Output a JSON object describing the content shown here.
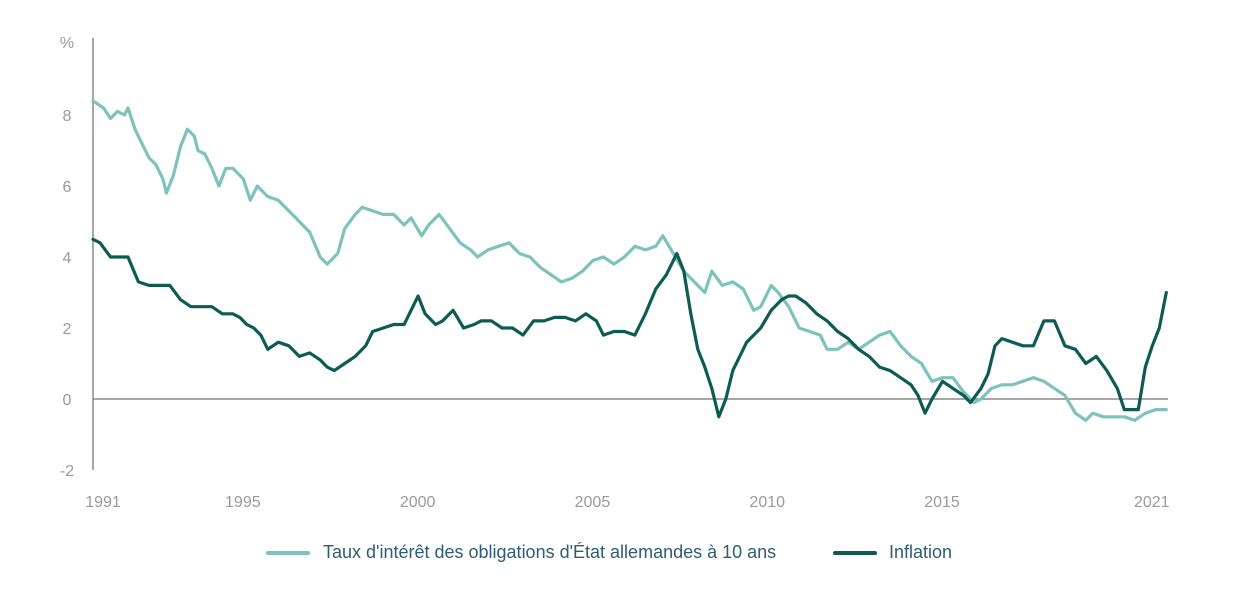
{
  "chart_data": {
    "type": "line",
    "y_unit": "%",
    "ylim": [
      -2,
      10
    ],
    "xlim": [
      1991,
      2021.75
    ],
    "y_ticks": [
      -2,
      0,
      2,
      4,
      6,
      8
    ],
    "x_ticks": [
      1991,
      1995,
      2000,
      2005,
      2010,
      2015,
      2021
    ],
    "grid": false,
    "legend_position": "bottom",
    "series": [
      {
        "name": "Taux d'intérêt des obligations d'État allemandes à 10 ans",
        "color": "#7dc3b9",
        "x": [
          1991,
          1991.3,
          1991.5,
          1991.7,
          1991.9,
          1992.0,
          1992.2,
          1992.4,
          1992.6,
          1992.8,
          1993.0,
          1993.1,
          1993.3,
          1993.5,
          1993.7,
          1993.9,
          1994.0,
          1994.2,
          1994.4,
          1994.6,
          1994.8,
          1995.0,
          1995.3,
          1995.5,
          1995.7,
          1996.0,
          1996.3,
          1996.6,
          1996.9,
          1997.2,
          1997.5,
          1997.7,
          1998.0,
          1998.2,
          1998.5,
          1998.7,
          1999.0,
          1999.3,
          1999.6,
          1999.9,
          2000.1,
          2000.4,
          2000.6,
          2000.9,
          2001.2,
          2001.5,
          2001.8,
          2002.0,
          2002.3,
          2002.6,
          2002.9,
          2003.2,
          2003.5,
          2003.8,
          2004.1,
          2004.4,
          2004.7,
          2005.0,
          2005.3,
          2005.6,
          2005.9,
          2006.2,
          2006.5,
          2006.8,
          2007.1,
          2007.3,
          2007.6,
          2007.9,
          2008.2,
          2008.5,
          2008.7,
          2009.0,
          2009.3,
          2009.6,
          2009.9,
          2010.1,
          2010.4,
          2010.6,
          2010.9,
          2011.2,
          2011.5,
          2011.8,
          2012.0,
          2012.3,
          2012.6,
          2012.9,
          2013.2,
          2013.5,
          2013.8,
          2014.1,
          2014.4,
          2014.7,
          2015.0,
          2015.3,
          2015.6,
          2015.9,
          2016.2,
          2016.4,
          2016.7,
          2017.0,
          2017.3,
          2017.6,
          2017.9,
          2018.2,
          2018.5,
          2018.8,
          2019.1,
          2019.4,
          2019.6,
          2019.9,
          2020.2,
          2020.5,
          2020.8,
          2021.1,
          2021.4,
          2021.7
        ],
        "y": [
          8.4,
          8.2,
          7.9,
          8.1,
          8.0,
          8.2,
          7.6,
          7.2,
          6.8,
          6.6,
          6.2,
          5.8,
          6.3,
          7.1,
          7.6,
          7.4,
          7.0,
          6.9,
          6.5,
          6.0,
          6.5,
          6.5,
          6.2,
          5.6,
          6.0,
          5.7,
          5.6,
          5.3,
          5.0,
          4.7,
          4.0,
          3.8,
          4.1,
          4.8,
          5.2,
          5.4,
          5.3,
          5.2,
          5.2,
          4.9,
          5.1,
          4.6,
          4.9,
          5.2,
          4.8,
          4.4,
          4.2,
          4.0,
          4.2,
          4.3,
          4.4,
          4.1,
          4.0,
          3.7,
          3.5,
          3.3,
          3.4,
          3.6,
          3.9,
          4.0,
          3.8,
          4.0,
          4.3,
          4.2,
          4.3,
          4.6,
          4.1,
          3.6,
          3.3,
          3.0,
          3.6,
          3.2,
          3.3,
          3.1,
          2.5,
          2.6,
          3.2,
          3.0,
          2.6,
          2.0,
          1.9,
          1.8,
          1.4,
          1.4,
          1.6,
          1.4,
          1.6,
          1.8,
          1.9,
          1.5,
          1.2,
          1.0,
          0.5,
          0.6,
          0.6,
          0.2,
          -0.1,
          0.0,
          0.3,
          0.4,
          0.4,
          0.5,
          0.6,
          0.5,
          0.3,
          0.1,
          -0.4,
          -0.6,
          -0.4,
          -0.5,
          -0.5,
          -0.5,
          -0.6,
          -0.4,
          -0.3,
          -0.3
        ]
      },
      {
        "name": "Inflation",
        "color": "#0d5c53",
        "x": [
          1991,
          1991.2,
          1991.5,
          1991.8,
          1992.0,
          1992.3,
          1992.6,
          1992.9,
          1993.2,
          1993.5,
          1993.8,
          1994.1,
          1994.4,
          1994.7,
          1995.0,
          1995.2,
          1995.4,
          1995.6,
          1995.8,
          1996.0,
          1996.3,
          1996.6,
          1996.9,
          1997.2,
          1997.5,
          1997.7,
          1997.9,
          1998.2,
          1998.5,
          1998.8,
          1999.0,
          1999.3,
          1999.6,
          1999.9,
          2000.0,
          2000.3,
          2000.5,
          2000.8,
          2001.0,
          2001.3,
          2001.6,
          2001.9,
          2002.1,
          2002.4,
          2002.7,
          2003.0,
          2003.3,
          2003.6,
          2003.9,
          2004.2,
          2004.5,
          2004.8,
          2005.1,
          2005.4,
          2005.6,
          2005.9,
          2006.2,
          2006.5,
          2006.8,
          2007.1,
          2007.4,
          2007.7,
          2007.9,
          2008.1,
          2008.3,
          2008.5,
          2008.7,
          2008.9,
          2009.1,
          2009.3,
          2009.5,
          2009.7,
          2009.9,
          2010.1,
          2010.4,
          2010.7,
          2010.9,
          2011.1,
          2011.4,
          2011.7,
          2012.0,
          2012.3,
          2012.6,
          2012.9,
          2013.2,
          2013.5,
          2013.8,
          2014.1,
          2014.4,
          2014.6,
          2014.8,
          2015.0,
          2015.3,
          2015.6,
          2015.9,
          2016.1,
          2016.4,
          2016.6,
          2016.8,
          2017.0,
          2017.3,
          2017.6,
          2017.9,
          2018.2,
          2018.5,
          2018.8,
          2019.1,
          2019.4,
          2019.7,
          2020.0,
          2020.3,
          2020.5,
          2020.7,
          2020.9,
          2021.1,
          2021.3,
          2021.5,
          2021.7
        ],
        "y": [
          4.5,
          4.4,
          4.0,
          4.0,
          4.0,
          3.3,
          3.2,
          3.2,
          3.2,
          2.8,
          2.6,
          2.6,
          2.6,
          2.4,
          2.4,
          2.3,
          2.1,
          2.0,
          1.8,
          1.4,
          1.6,
          1.5,
          1.2,
          1.3,
          1.1,
          0.9,
          0.8,
          1.0,
          1.2,
          1.5,
          1.9,
          2.0,
          2.1,
          2.1,
          2.3,
          2.9,
          2.4,
          2.1,
          2.2,
          2.5,
          2.0,
          2.1,
          2.2,
          2.2,
          2.0,
          2.0,
          1.8,
          2.2,
          2.2,
          2.3,
          2.3,
          2.2,
          2.4,
          2.2,
          1.8,
          1.9,
          1.9,
          1.8,
          2.4,
          3.1,
          3.5,
          4.1,
          3.6,
          2.4,
          1.4,
          0.9,
          0.3,
          -0.5,
          0.0,
          0.8,
          1.2,
          1.6,
          1.8,
          2.0,
          2.5,
          2.8,
          2.9,
          2.9,
          2.7,
          2.4,
          2.2,
          1.9,
          1.7,
          1.4,
          1.2,
          0.9,
          0.8,
          0.6,
          0.4,
          0.1,
          -0.4,
          0.0,
          0.5,
          0.3,
          0.1,
          -0.1,
          0.3,
          0.7,
          1.5,
          1.7,
          1.6,
          1.5,
          1.5,
          2.2,
          2.2,
          1.5,
          1.4,
          1.0,
          1.2,
          0.8,
          0.3,
          -0.3,
          -0.3,
          -0.3,
          0.9,
          1.5,
          2.0,
          3.0
        ]
      }
    ]
  }
}
